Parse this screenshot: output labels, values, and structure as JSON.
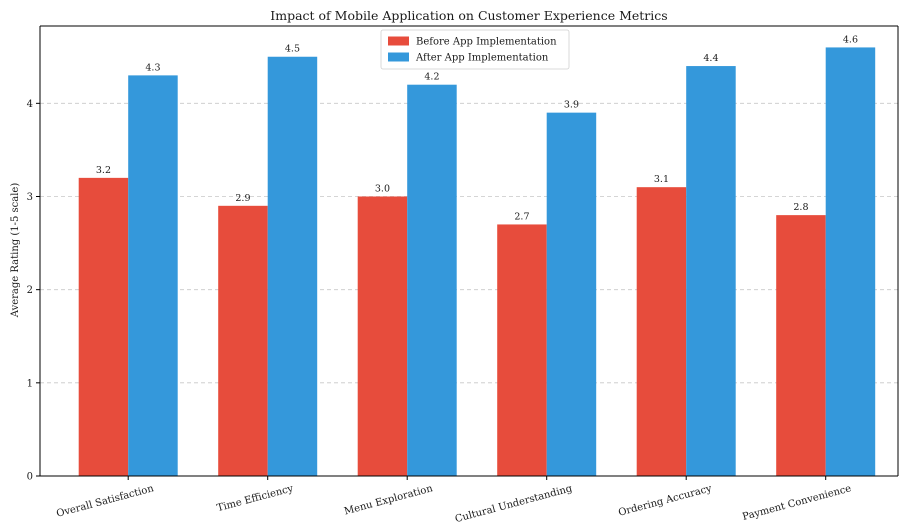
{
  "chart_data": {
    "type": "bar",
    "title": "Impact of Mobile Application on Customer Experience Metrics",
    "xlabel": "",
    "ylabel": "Average Rating (1-5 scale)",
    "ylim": [
      0,
      4.83
    ],
    "yticks": [
      0,
      1,
      2,
      3,
      4
    ],
    "grid": "horizontal dashed",
    "legend_position": "top-center",
    "categories": [
      "Overall Satisfaction",
      "Time Efficiency",
      "Menu Exploration",
      "Cultural Understanding",
      "Ordering Accuracy",
      "Payment Convenience"
    ],
    "series": [
      {
        "name": "Before App Implementation",
        "color": "#e74c3c",
        "values": [
          3.2,
          2.9,
          3.0,
          2.7,
          3.1,
          2.8
        ],
        "labels": [
          "3.2",
          "2.9",
          "3.0",
          "2.7",
          "3.1",
          "2.8"
        ]
      },
      {
        "name": "After App Implementation",
        "color": "#3498db",
        "values": [
          4.3,
          4.5,
          4.2,
          3.9,
          4.4,
          4.6
        ],
        "labels": [
          "4.3",
          "4.5",
          "4.2",
          "3.9",
          "4.4",
          "4.6"
        ]
      }
    ]
  }
}
